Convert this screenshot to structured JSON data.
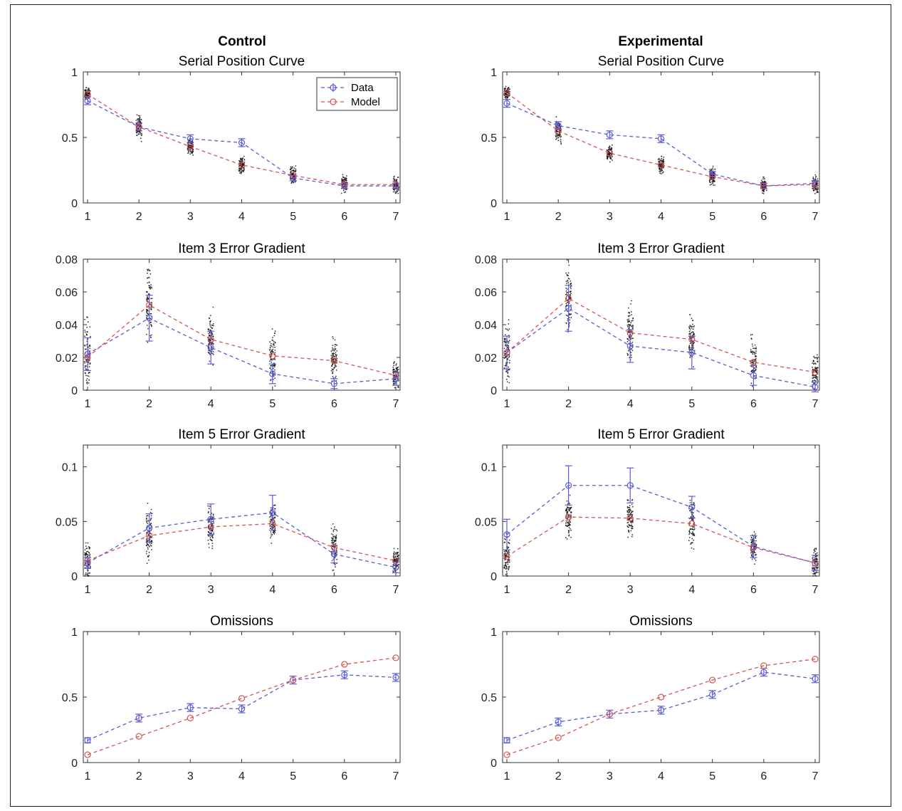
{
  "figure": {
    "group_titles": [
      "Control",
      "Experimental"
    ]
  },
  "colors": {
    "data": "#5b5bd6",
    "model": "#d9534f",
    "samples": "#111111",
    "axis": "#333333"
  },
  "legend": {
    "data_label": "Data",
    "model_label": "Model"
  },
  "chart_data": [
    {
      "type": "line",
      "group": "Control",
      "title": "Serial Position Curve",
      "xlabel": "",
      "ylabel": "",
      "x": [
        1,
        2,
        3,
        4,
        5,
        6,
        7
      ],
      "ylim": [
        0,
        1
      ],
      "yticks": [
        0,
        0.5,
        1
      ],
      "ytick_labels": [
        "0",
        "0.5",
        "1"
      ],
      "legend": "top-right",
      "grid": false,
      "series": [
        {
          "name": "Data",
          "values": [
            0.78,
            0.58,
            0.49,
            0.46,
            0.19,
            0.13,
            0.13
          ],
          "err": [
            0.03,
            0.03,
            0.03,
            0.03,
            0.02,
            0.02,
            0.02
          ]
        },
        {
          "name": "Model",
          "values": [
            0.83,
            0.58,
            0.43,
            0.29,
            0.21,
            0.14,
            0.14
          ],
          "spread": [
            0.06,
            0.12,
            0.09,
            0.09,
            0.09,
            0.09,
            0.09
          ]
        }
      ]
    },
    {
      "type": "line",
      "group": "Experimental",
      "title": "Serial Position Curve",
      "xlabel": "",
      "ylabel": "",
      "x": [
        1,
        2,
        3,
        4,
        5,
        6,
        7
      ],
      "ylim": [
        0,
        1
      ],
      "yticks": [
        0,
        0.5,
        1
      ],
      "ytick_labels": [
        "0",
        "0.5",
        "1"
      ],
      "grid": false,
      "series": [
        {
          "name": "Data",
          "values": [
            0.76,
            0.59,
            0.52,
            0.49,
            0.22,
            0.13,
            0.15
          ],
          "err": [
            0.03,
            0.03,
            0.03,
            0.03,
            0.02,
            0.02,
            0.02
          ]
        },
        {
          "name": "Model",
          "values": [
            0.84,
            0.55,
            0.38,
            0.29,
            0.2,
            0.13,
            0.14
          ],
          "spread": [
            0.06,
            0.12,
            0.09,
            0.09,
            0.09,
            0.09,
            0.09
          ]
        }
      ]
    },
    {
      "type": "line",
      "group": "Control",
      "title": "Item 3 Error Gradient",
      "xlabel": "",
      "ylabel": "",
      "x": [
        1,
        2,
        4,
        5,
        6,
        7
      ],
      "ylim": [
        0,
        0.08
      ],
      "yticks": [
        0,
        0.02,
        0.04,
        0.06,
        0.08
      ],
      "ytick_labels": [
        "0",
        "0.02",
        "0.04",
        "0.06",
        "0.08"
      ],
      "grid": false,
      "series": [
        {
          "name": "Data",
          "values": [
            0.022,
            0.044,
            0.026,
            0.01,
            0.004,
            0.007
          ],
          "err": [
            0.01,
            0.014,
            0.01,
            0.006,
            0.003,
            0.004
          ]
        },
        {
          "name": "Model",
          "values": [
            0.02,
            0.052,
            0.031,
            0.021,
            0.018,
            0.009
          ],
          "spread": [
            0.028,
            0.028,
            0.022,
            0.022,
            0.017,
            0.012
          ]
        }
      ]
    },
    {
      "type": "line",
      "group": "Experimental",
      "title": "Item 3 Error Gradient",
      "xlabel": "",
      "ylabel": "",
      "x": [
        1,
        2,
        4,
        5,
        6,
        7
      ],
      "ylim": [
        0,
        0.08
      ],
      "yticks": [
        0,
        0.02,
        0.04,
        0.06,
        0.08
      ],
      "ytick_labels": [
        "0",
        "0.02",
        "0.04",
        "0.06",
        "0.08"
      ],
      "grid": false,
      "series": [
        {
          "name": "Data",
          "values": [
            0.023,
            0.05,
            0.027,
            0.023,
            0.009,
            0.002
          ],
          "err": [
            0.01,
            0.014,
            0.01,
            0.01,
            0.006,
            0.003
          ]
        },
        {
          "name": "Model",
          "values": [
            0.023,
            0.056,
            0.035,
            0.031,
            0.017,
            0.011
          ],
          "spread": [
            0.028,
            0.028,
            0.022,
            0.02,
            0.02,
            0.015
          ]
        }
      ]
    },
    {
      "type": "line",
      "group": "Control",
      "title": "Item 5 Error Gradient",
      "xlabel": "",
      "ylabel": "",
      "x": [
        1,
        2,
        3,
        4,
        6,
        7
      ],
      "ylim": [
        0,
        0.12
      ],
      "yticks": [
        0,
        0.05,
        0.1
      ],
      "ytick_labels": [
        "0",
        "0.05",
        "0.1"
      ],
      "grid": false,
      "series": [
        {
          "name": "Data",
          "values": [
            0.012,
            0.044,
            0.052,
            0.058,
            0.02,
            0.008
          ],
          "err": [
            0.005,
            0.013,
            0.014,
            0.016,
            0.008,
            0.005
          ]
        },
        {
          "name": "Model",
          "values": [
            0.014,
            0.037,
            0.045,
            0.048,
            0.026,
            0.014
          ],
          "spread": [
            0.024,
            0.038,
            0.027,
            0.026,
            0.023,
            0.015
          ]
        }
      ]
    },
    {
      "type": "line",
      "group": "Experimental",
      "title": "Item 5 Error Gradient",
      "xlabel": "",
      "ylabel": "",
      "x": [
        1,
        2,
        3,
        4,
        6,
        7
      ],
      "ylim": [
        0,
        0.12
      ],
      "yticks": [
        0,
        0.05,
        0.1
      ],
      "ytick_labels": [
        "0",
        "0.05",
        "0.1"
      ],
      "grid": false,
      "series": [
        {
          "name": "Data",
          "values": [
            0.038,
            0.083,
            0.083,
            0.063,
            0.027,
            0.012
          ],
          "err": [
            0.014,
            0.018,
            0.016,
            0.01,
            0.01,
            0.007
          ]
        },
        {
          "name": "Model",
          "values": [
            0.018,
            0.054,
            0.053,
            0.048,
            0.026,
            0.012
          ],
          "spread": [
            0.025,
            0.026,
            0.023,
            0.03,
            0.017,
            0.016
          ]
        }
      ]
    },
    {
      "type": "line",
      "group": "Control",
      "title": "Omissions",
      "xlabel": "",
      "ylabel": "",
      "x": [
        1,
        2,
        3,
        4,
        5,
        6,
        7
      ],
      "ylim": [
        0,
        1
      ],
      "yticks": [
        0,
        0.5,
        1
      ],
      "ytick_labels": [
        "0",
        "0.5",
        "1"
      ],
      "grid": false,
      "series": [
        {
          "name": "Data",
          "values": [
            0.17,
            0.34,
            0.42,
            0.41,
            0.63,
            0.67,
            0.65
          ],
          "err": [
            0.02,
            0.03,
            0.03,
            0.03,
            0.03,
            0.03,
            0.03
          ]
        },
        {
          "name": "Model",
          "values": [
            0.06,
            0.2,
            0.34,
            0.49,
            0.63,
            0.75,
            0.8
          ]
        }
      ]
    },
    {
      "type": "line",
      "group": "Experimental",
      "title": "Omissions",
      "xlabel": "",
      "ylabel": "",
      "x": [
        1,
        2,
        3,
        4,
        5,
        6,
        7
      ],
      "ylim": [
        0,
        1
      ],
      "yticks": [
        0,
        0.5,
        1
      ],
      "ytick_labels": [
        "0",
        "0.5",
        "1"
      ],
      "grid": false,
      "series": [
        {
          "name": "Data",
          "values": [
            0.17,
            0.31,
            0.37,
            0.4,
            0.52,
            0.69,
            0.64
          ],
          "err": [
            0.02,
            0.03,
            0.03,
            0.03,
            0.03,
            0.03,
            0.03
          ]
        },
        {
          "name": "Model",
          "values": [
            0.06,
            0.19,
            0.37,
            0.5,
            0.63,
            0.74,
            0.79
          ]
        }
      ]
    }
  ]
}
